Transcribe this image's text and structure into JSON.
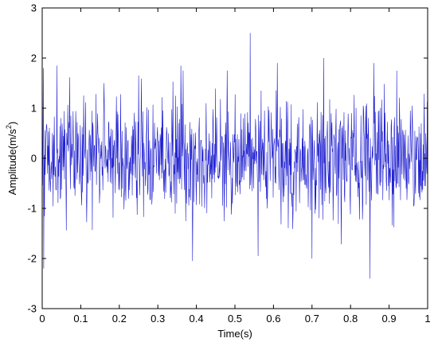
{
  "chart_data": {
    "type": "line",
    "title": "",
    "xlabel": "Time(s)",
    "ylabel": "Amplitude(m/s²)",
    "ylabel_base": "Amplitude(m/s",
    "ylabel_sup": "2",
    "ylabel_close": ")",
    "xlim": [
      0,
      1
    ],
    "ylim": [
      -3,
      3
    ],
    "x_ticks": [
      0,
      0.1,
      0.2,
      0.3,
      0.4,
      0.5,
      0.6,
      0.7,
      0.8,
      0.9,
      1
    ],
    "x_tick_labels": [
      "0",
      "0.1",
      "0.2",
      "0.3",
      "0.4",
      "0.5",
      "0.6",
      "0.7",
      "0.8",
      "0.9",
      "1"
    ],
    "y_ticks": [
      -3,
      -2,
      -1,
      0,
      1,
      2,
      3
    ],
    "y_tick_labels": [
      "-3",
      "-2",
      "-1",
      "0",
      "1",
      "2",
      "3"
    ],
    "grid": false,
    "legend": "none",
    "line_color": "#1f1fd0",
    "series": [
      {
        "x_start": 0,
        "x_end": 1,
        "sample_count": 1024,
        "values_description_note_excluded": null,
        "peaks": [
          {
            "x": 0.003,
            "y": 1.8
          },
          {
            "x": 0.004,
            "y": -2.2
          },
          {
            "x": 0.038,
            "y": 1.85
          },
          {
            "x": 0.16,
            "y": 1.5
          },
          {
            "x": 0.25,
            "y": 1.65
          },
          {
            "x": 0.36,
            "y": 1.85
          },
          {
            "x": 0.39,
            "y": -2.05
          },
          {
            "x": 0.48,
            "y": 1.75
          },
          {
            "x": 0.54,
            "y": 2.5
          },
          {
            "x": 0.56,
            "y": -1.95
          },
          {
            "x": 0.61,
            "y": 1.9
          },
          {
            "x": 0.7,
            "y": -2.0
          },
          {
            "x": 0.73,
            "y": 2.0
          },
          {
            "x": 0.85,
            "y": -2.4
          },
          {
            "x": 0.86,
            "y": 1.9
          },
          {
            "x": 0.92,
            "y": 1.75
          }
        ]
      }
    ]
  }
}
